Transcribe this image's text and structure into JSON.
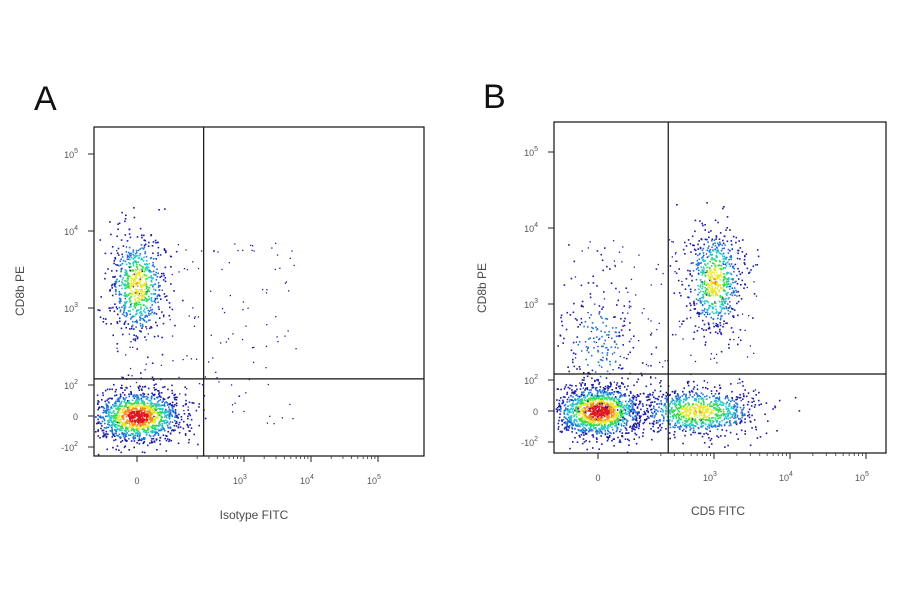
{
  "chart_data": [
    {
      "type": "scatter",
      "panel_label": "A",
      "xlabel": "Isotype FITC",
      "ylabel": "CD8b PE",
      "x_scale": "biexponential",
      "y_scale": "biexponential",
      "x_ticks": [
        {
          "value": 0,
          "label": "0"
        },
        {
          "value": 1000,
          "label": "10",
          "exp": "3"
        },
        {
          "value": 10000,
          "label": "10",
          "exp": "4"
        },
        {
          "value": 100000,
          "label": "10",
          "exp": "5"
        }
      ],
      "y_ticks": [
        {
          "value": -100,
          "label": "-10",
          "exp": "2"
        },
        {
          "value": 0,
          "label": "0"
        },
        {
          "value": 100,
          "label": "10",
          "exp": "2"
        },
        {
          "value": 1000,
          "label": "10",
          "exp": "3"
        },
        {
          "value": 10000,
          "label": "10",
          "exp": "4"
        },
        {
          "value": 100000,
          "label": "10",
          "exp": "5"
        }
      ],
      "gates": {
        "x": 250,
        "y": 120
      },
      "populations": [
        {
          "x": 0,
          "y": 0,
          "relative_density": "high"
        },
        {
          "x": 0,
          "y": 2000,
          "relative_density": "medium"
        }
      ],
      "density_colors": [
        "#1a1aa6",
        "#1f74d8",
        "#25c8c8",
        "#2fdc4c",
        "#e8e830",
        "#f08c1e",
        "#e0141e"
      ]
    },
    {
      "type": "scatter",
      "panel_label": "B",
      "xlabel": "CD5 FITC",
      "ylabel": "CD8b PE",
      "x_scale": "biexponential",
      "y_scale": "biexponential",
      "x_ticks": [
        {
          "value": 0,
          "label": "0"
        },
        {
          "value": 1000,
          "label": "10",
          "exp": "3"
        },
        {
          "value": 10000,
          "label": "10",
          "exp": "4"
        },
        {
          "value": 100000,
          "label": "10",
          "exp": "5"
        }
      ],
      "y_ticks": [
        {
          "value": -100,
          "label": "-10",
          "exp": "2"
        },
        {
          "value": 0,
          "label": "0"
        },
        {
          "value": 100,
          "label": "10",
          "exp": "2"
        },
        {
          "value": 1000,
          "label": "10",
          "exp": "3"
        },
        {
          "value": 10000,
          "label": "10",
          "exp": "4"
        },
        {
          "value": 100000,
          "label": "10",
          "exp": "5"
        }
      ],
      "gates": {
        "x": 250,
        "y": 120
      },
      "populations": [
        {
          "x": 0,
          "y": 0,
          "relative_density": "high"
        },
        {
          "x": 600,
          "y": 0,
          "relative_density": "medium"
        },
        {
          "x": 1000,
          "y": 2000,
          "relative_density": "medium"
        },
        {
          "x": 0,
          "y": 300,
          "relative_density": "low"
        }
      ],
      "density_colors": [
        "#1a1aa6",
        "#1f74d8",
        "#25c8c8",
        "#2fdc4c",
        "#e8e830",
        "#f08c1e",
        "#e0141e"
      ]
    }
  ]
}
